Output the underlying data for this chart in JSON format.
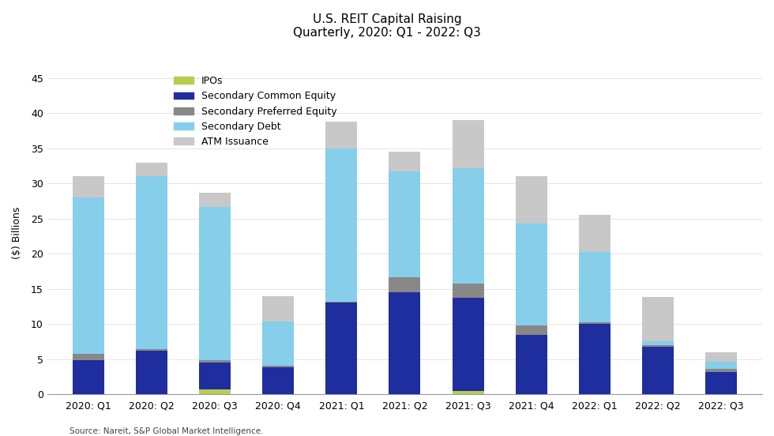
{
  "title_line1": "U.S. REIT Capital Raising",
  "title_line2": "Quarterly, 2020: Q1 - 2022: Q3",
  "categories": [
    "2020: Q1",
    "2020: Q2",
    "2020: Q3",
    "2020: Q4",
    "2021: Q1",
    "2021: Q2",
    "2021: Q3",
    "2021: Q4",
    "2022: Q1",
    "2022: Q2",
    "2022: Q3"
  ],
  "ipos": [
    0.0,
    0.0,
    0.7,
    0.0,
    0.0,
    0.0,
    0.5,
    0.0,
    0.0,
    0.0,
    0.0
  ],
  "secondary_common_equity": [
    4.8,
    6.2,
    3.8,
    3.8,
    13.0,
    14.5,
    13.2,
    8.5,
    10.0,
    6.8,
    3.2
  ],
  "secondary_preferred_equity": [
    1.0,
    0.2,
    0.4,
    0.3,
    0.2,
    2.2,
    2.0,
    1.3,
    0.2,
    0.2,
    0.4
  ],
  "secondary_debt": [
    22.2,
    24.6,
    21.8,
    6.3,
    21.8,
    15.0,
    16.5,
    14.5,
    10.0,
    0.5,
    1.0
  ],
  "atm_issuance": [
    3.0,
    2.0,
    2.0,
    3.6,
    3.8,
    2.8,
    6.8,
    6.7,
    5.3,
    6.3,
    1.4
  ],
  "colors": {
    "ipos": "#b8cc50",
    "secondary_common_equity": "#1f2e9e",
    "secondary_preferred_equity": "#888888",
    "secondary_debt": "#87ceeb",
    "atm_issuance": "#c8c8c8"
  },
  "ylabel": "($) Billions",
  "ylim": [
    0,
    46
  ],
  "yticks": [
    0,
    5,
    10,
    15,
    20,
    25,
    30,
    35,
    40,
    45
  ],
  "source": "Source: Nareit, S&P Global Market Intelligence.",
  "legend_labels": [
    "IPOs",
    "Secondary Common Equity",
    "Secondary Preferred Equity",
    "Secondary Debt",
    "ATM Issuance"
  ],
  "background_color": "#ffffff",
  "title_fontsize": 11,
  "axis_fontsize": 9,
  "legend_fontsize": 9,
  "bar_width": 0.5
}
